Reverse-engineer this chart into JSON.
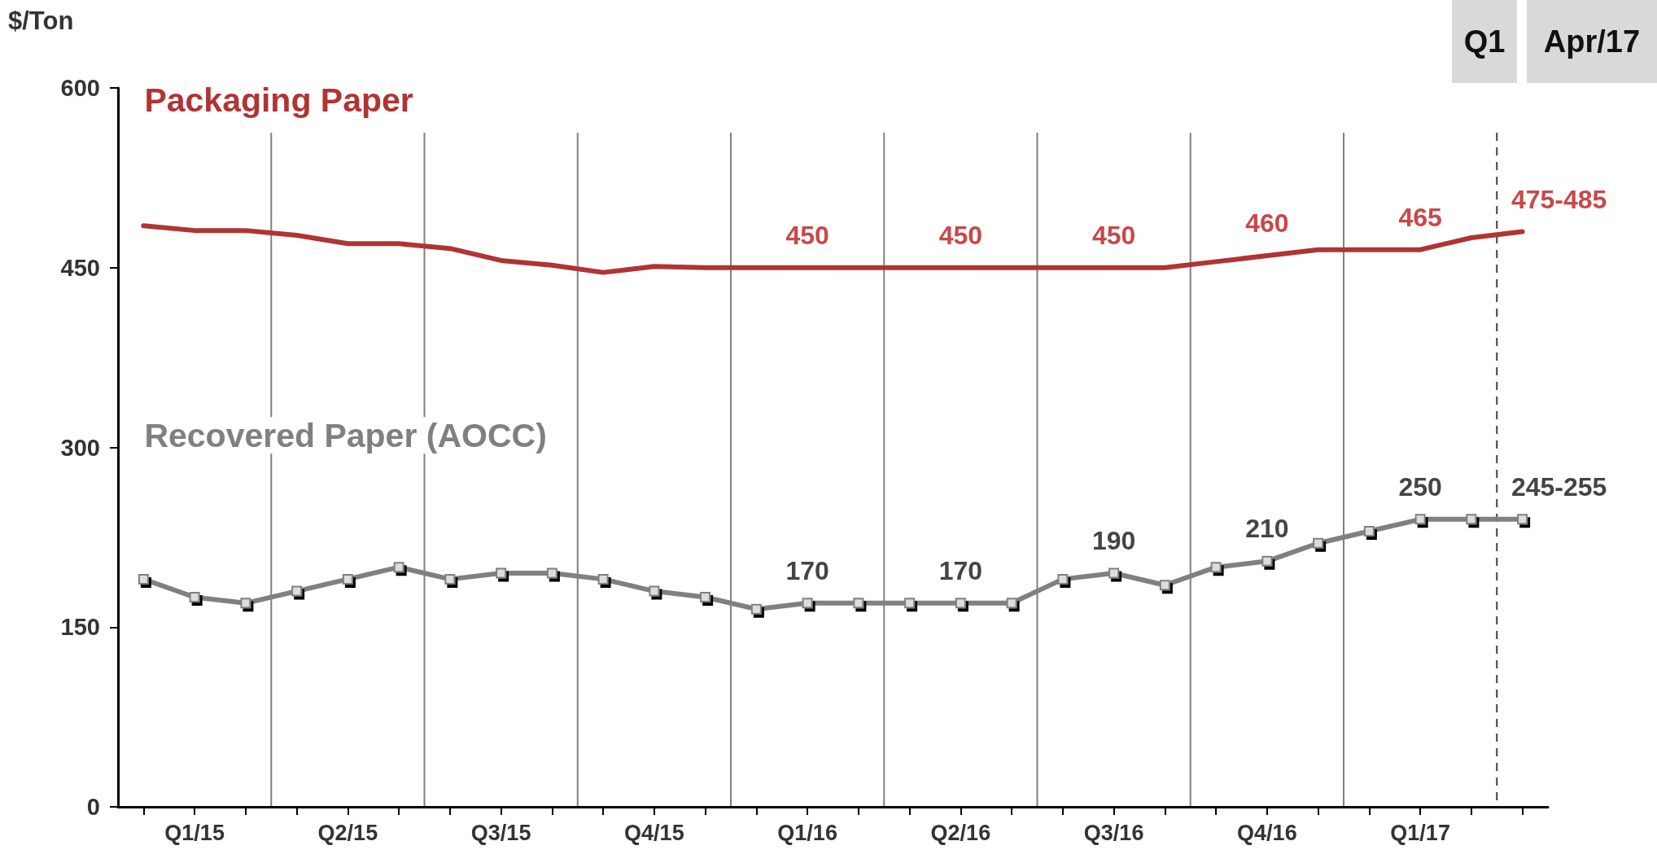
{
  "chart_data": {
    "type": "line",
    "ylabel": "$/Ton",
    "categories": [
      null,
      "Q1/15",
      null,
      null,
      "Q2/15",
      null,
      null,
      "Q3/15",
      null,
      null,
      "Q4/15",
      null,
      null,
      "Q1/16",
      null,
      null,
      "Q2/16",
      null,
      null,
      "Q3/16",
      null,
      null,
      "Q4/16",
      null,
      null,
      "Q1/17",
      null,
      null
    ],
    "ylim": [
      0,
      600
    ],
    "yticks": [
      0,
      150,
      300,
      450,
      600
    ],
    "grid": "x",
    "legend": false,
    "line_style": "solid",
    "series": [
      {
        "name": "Packaging Paper",
        "color": "#b03434",
        "marker": "none",
        "values": [
          485,
          481,
          481,
          477,
          470,
          470,
          466,
          456,
          452,
          446,
          451,
          450,
          450,
          450,
          450,
          450,
          450,
          450,
          450,
          450,
          450,
          455,
          460,
          465,
          465,
          465,
          475,
          480
        ]
      },
      {
        "name": "Recovered Paper (AOCC)",
        "color": "#808080",
        "marker": "square",
        "values": [
          190,
          175,
          170,
          180,
          190,
          200,
          190,
          195,
          195,
          190,
          180,
          175,
          165,
          170,
          170,
          170,
          170,
          170,
          190,
          195,
          185,
          200,
          205,
          220,
          230,
          240,
          240,
          240
        ]
      }
    ],
    "annotations": [
      "Q1",
      "Apr/17",
      {
        "text": "450",
        "x": "Q1/16",
        "y": 450
      },
      {
        "text": "450",
        "x": "Q2/16",
        "y": 450
      },
      {
        "text": "450",
        "x": "Q3/16",
        "y": 450
      },
      {
        "text": "460",
        "x": "Q4/16",
        "y": 460
      },
      {
        "text": "465",
        "x": "Q1/17",
        "y": 465
      },
      "475-485",
      {
        "text": "170",
        "x": "Q1/16",
        "y": 170
      },
      {
        "text": "170",
        "x": "Q2/16",
        "y": 170
      },
      {
        "text": "190",
        "x": "Q3/16",
        "y": 195
      },
      {
        "text": "210",
        "x": "Q4/16",
        "y": 205
      },
      {
        "text": "250",
        "x": "Q1/17",
        "y": 240
      },
      "245-255"
    ]
  }
}
